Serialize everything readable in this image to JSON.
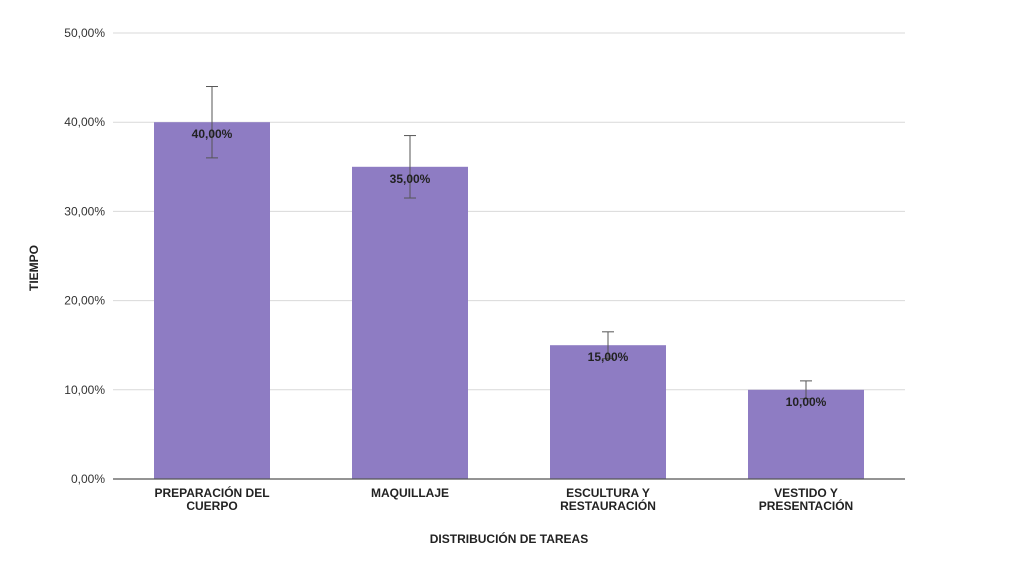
{
  "chart_data": {
    "type": "bar",
    "title": "",
    "xlabel": "DISTRIBUCIÓN DE TAREAS",
    "ylabel": "TIEMPO",
    "categories": [
      [
        "PREPARACIÓN DEL",
        "CUERPO"
      ],
      [
        "MAQUILLAJE"
      ],
      [
        "ESCULTURA Y",
        "RESTAURACIÓN"
      ],
      [
        "VESTIDO Y",
        "PRESENTACIÓN"
      ]
    ],
    "values": [
      40,
      35,
      15,
      10
    ],
    "value_labels": [
      "40,00%",
      "35,00%",
      "15,00%",
      "10,00%"
    ],
    "error_bars": [
      [
        36,
        44
      ],
      [
        31.5,
        38.5
      ],
      [
        13.5,
        16.5
      ],
      [
        9,
        11
      ]
    ],
    "ylim": [
      0,
      50
    ],
    "yticks": [
      0,
      10,
      20,
      30,
      40,
      50
    ],
    "ytick_labels": [
      "0,00%",
      "10,00%",
      "20,00%",
      "30,00%",
      "40,00%",
      "50,00%"
    ],
    "grid": true,
    "bar_color": "#8e7cc3"
  }
}
